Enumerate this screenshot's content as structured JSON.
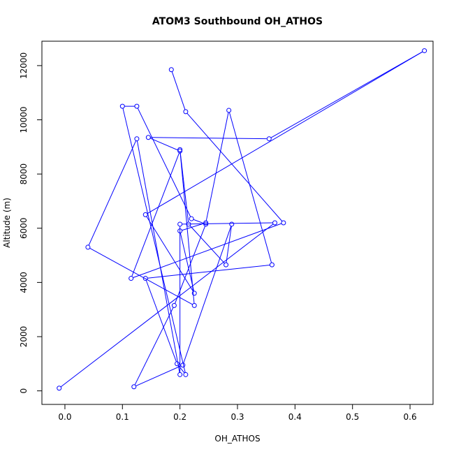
{
  "chart_data": {
    "type": "line",
    "title": "ATOM3 Southbound OH_ATHOS",
    "xlabel": "OH_ATHOS",
    "ylabel": "Altitude (m)",
    "xlim": [
      -0.04,
      0.64
    ],
    "ylim": [
      -500,
      12900
    ],
    "xticks": [
      "0.0",
      "0.1",
      "0.2",
      "0.3",
      "0.4",
      "0.5",
      "0.6"
    ],
    "yticks": [
      "0",
      "2000",
      "4000",
      "6000",
      "8000",
      "10000",
      "12000"
    ],
    "grid": false,
    "marker": "open-circle",
    "color": "#0000ff",
    "series": [
      {
        "x": [
          0.185,
          0.21,
          0.38,
          0.115,
          0.2,
          0.145,
          0.355,
          0.625,
          0.14,
          0.225,
          0.2,
          0.245,
          0.285,
          0.36,
          0.14,
          0.195,
          0.21,
          0.1,
          0.125,
          0.22,
          0.245,
          0.19,
          0.12,
          0.205,
          0.29,
          0.28,
          0.215,
          0.2,
          0.225,
          0.04,
          0.125,
          0.2,
          0.2,
          0.365,
          -0.01
        ],
        "y": [
          11850,
          10300,
          6200,
          4150,
          8850,
          9350,
          9300,
          12550,
          6500,
          3600,
          5900,
          6200,
          10350,
          4650,
          4150,
          1000,
          600,
          10500,
          10500,
          6350,
          6150,
          3150,
          150,
          950,
          6150,
          4650,
          6150,
          8900,
          3150,
          5300,
          9300,
          600,
          6150,
          6200,
          100
        ]
      }
    ]
  }
}
